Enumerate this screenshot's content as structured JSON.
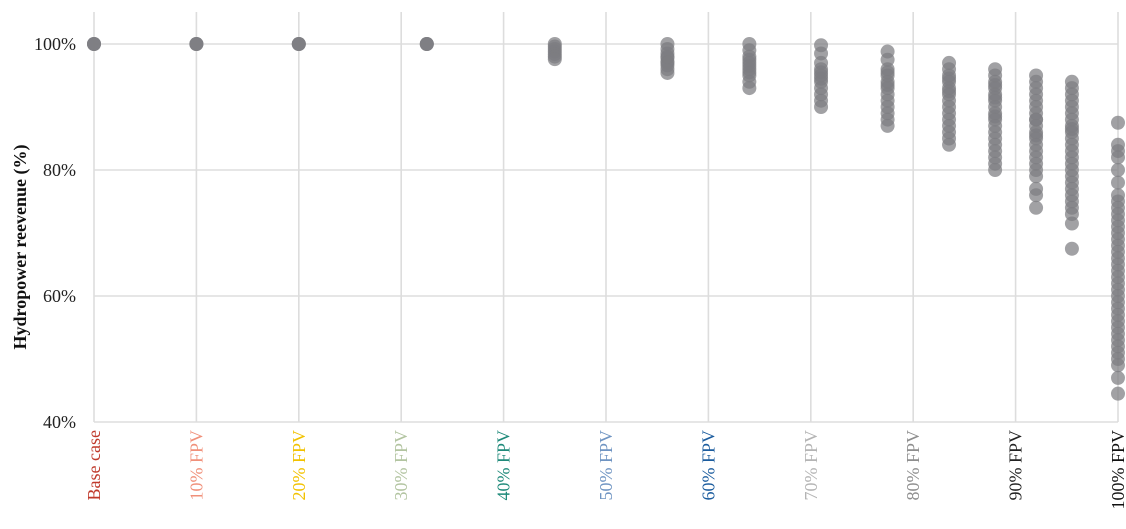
{
  "chart_data": {
    "type": "scatter",
    "ylabel": "Hydropower reevenue (%)",
    "ylim": [
      40,
      100
    ],
    "yticks": [
      {
        "value": 40,
        "label": "40%"
      },
      {
        "value": 60,
        "label": "60%"
      },
      {
        "value": 80,
        "label": "80%"
      },
      {
        "value": 100,
        "label": "100%"
      }
    ],
    "grid": true,
    "xticks": [
      {
        "label": "Base case",
        "color": "#c0392b"
      },
      {
        "label": "10% FPV",
        "color": "#f0907a"
      },
      {
        "label": "20% FPV",
        "color": "#f2c200"
      },
      {
        "label": "30% FPV",
        "color": "#b2c4a0"
      },
      {
        "label": "40% FPV",
        "color": "#1f8a7a"
      },
      {
        "label": "50% FPV",
        "color": "#6f94c2"
      },
      {
        "label": "60% FPV",
        "color": "#1b5c9e"
      },
      {
        "label": "70% FPV",
        "color": "#b4b4b4"
      },
      {
        "label": "80% FPV",
        "color": "#8e8e8e"
      },
      {
        "label": "90% FPV",
        "color": "#222222"
      },
      {
        "label": "100% FPV",
        "color": "#111111"
      }
    ],
    "point_color": "#7d7d81",
    "series": [
      {
        "x": 0,
        "values": [
          100,
          100,
          100
        ]
      },
      {
        "x": 1,
        "values": [
          100,
          100,
          100
        ]
      },
      {
        "x": 2,
        "values": [
          100,
          100,
          100
        ]
      },
      {
        "x": 3.25,
        "values": [
          100,
          100,
          100
        ]
      },
      {
        "x": 4.5,
        "values": [
          100,
          99.6,
          99.2,
          98.8,
          98.4,
          98.0,
          97.6
        ]
      },
      {
        "x": 5.6,
        "values": [
          100,
          99.2,
          98.5,
          97.8,
          97.2,
          96.6,
          96.0,
          95.4,
          98.0,
          97.0
        ]
      },
      {
        "x": 6.4,
        "values": [
          100,
          99.0,
          98.0,
          97.0,
          96.0,
          95.0,
          94.0,
          93.0,
          96.5,
          95.5,
          97.5
        ]
      },
      {
        "x": 7.1,
        "values": [
          99.8,
          98.5,
          97.0,
          96.0,
          95.0,
          94.0,
          93.0,
          92.0,
          90.0,
          91.0,
          95.5,
          94.5
        ]
      },
      {
        "x": 7.75,
        "values": [
          98.8,
          97.5,
          96.0,
          95.0,
          94.0,
          93.0,
          92.0,
          91.0,
          90.0,
          89.0,
          88.0,
          87.0,
          93.5,
          95.5
        ]
      },
      {
        "x": 8.35,
        "values": [
          97.0,
          96.0,
          95.0,
          94.0,
          93.0,
          92.0,
          91.0,
          90.0,
          89.0,
          88.0,
          87.0,
          86.0,
          85.0,
          84.0,
          92.5,
          94.5
        ]
      },
      {
        "x": 8.8,
        "values": [
          96.0,
          95.0,
          94.0,
          93.0,
          92.0,
          91.0,
          90.0,
          89.0,
          88.0,
          87.0,
          86.0,
          85.0,
          84.0,
          83.0,
          82.0,
          81.0,
          80.0,
          91.5,
          88.5,
          93.5
        ]
      },
      {
        "x": 9.2,
        "values": [
          95.0,
          94.0,
          93.0,
          92.0,
          91.0,
          90.0,
          89.0,
          88.0,
          87.0,
          86.0,
          85.0,
          84.0,
          83.0,
          82.0,
          81.0,
          80.0,
          79.0,
          77.0,
          76.0,
          74.0,
          88.0,
          85.5
        ]
      },
      {
        "x": 9.55,
        "values": [
          94.0,
          93.0,
          92.0,
          91.0,
          90.0,
          89.0,
          88.0,
          87.0,
          86.0,
          85.0,
          84.0,
          83.0,
          82.0,
          81.0,
          80.0,
          79.0,
          78.0,
          77.0,
          76.0,
          75.0,
          74.0,
          73.0,
          71.5,
          67.5,
          86.5
        ]
      },
      {
        "x": 10.0,
        "values": [
          87.5,
          84.0,
          83.0,
          82.0,
          80.0,
          78.0,
          76.0,
          75.0,
          74.0,
          73.0,
          72.0,
          71.0,
          70.0,
          69.0,
          68.0,
          67.0,
          66.0,
          65.0,
          64.0,
          63.0,
          62.0,
          61.0,
          60.0,
          59.0,
          58.0,
          57.0,
          56.0,
          55.0,
          54.0,
          53.0,
          52.0,
          51.0,
          50.0,
          49.0,
          47.0,
          44.5
        ]
      }
    ]
  }
}
